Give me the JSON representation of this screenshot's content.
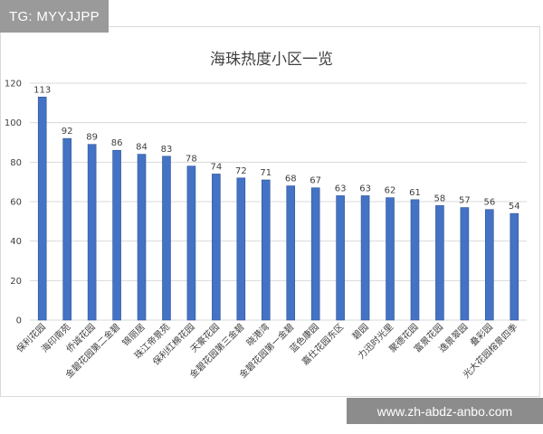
{
  "overlay": {
    "tag": "TG: MYYJJPP",
    "site": "www.zh-abdz-anbo.com"
  },
  "colors": {
    "bar": "#4472c4",
    "bar_edge": "#2f5597",
    "grid": "#d9d9d9",
    "text": "#404040"
  },
  "chart_data": {
    "type": "bar",
    "title": "海珠热度小区一览",
    "xlabel": "",
    "ylabel": "",
    "ylim": [
      0,
      120
    ],
    "yticks": [
      0,
      20,
      40,
      60,
      80,
      100,
      120
    ],
    "grid": true,
    "categories": [
      "保利花园",
      "海印南苑",
      "侨诚花园",
      "金碧花园第二金碧",
      "锦丽居",
      "珠江帝景苑",
      "保利红棉花园",
      "天豪花园",
      "金碧花园第三金碧",
      "晓港湾",
      "金碧花园第一金碧",
      "蓝色康园",
      "嘉仕花园东区",
      "碧园",
      "力迅时光里",
      "聚德花园",
      "富景花园",
      "逸景翠园",
      "叠彩园",
      "光大花园榕景四季"
    ],
    "values": [
      113,
      92,
      89,
      86,
      84,
      83,
      78,
      74,
      72,
      71,
      68,
      67,
      63,
      63,
      62,
      61,
      58,
      57,
      56,
      54
    ]
  }
}
